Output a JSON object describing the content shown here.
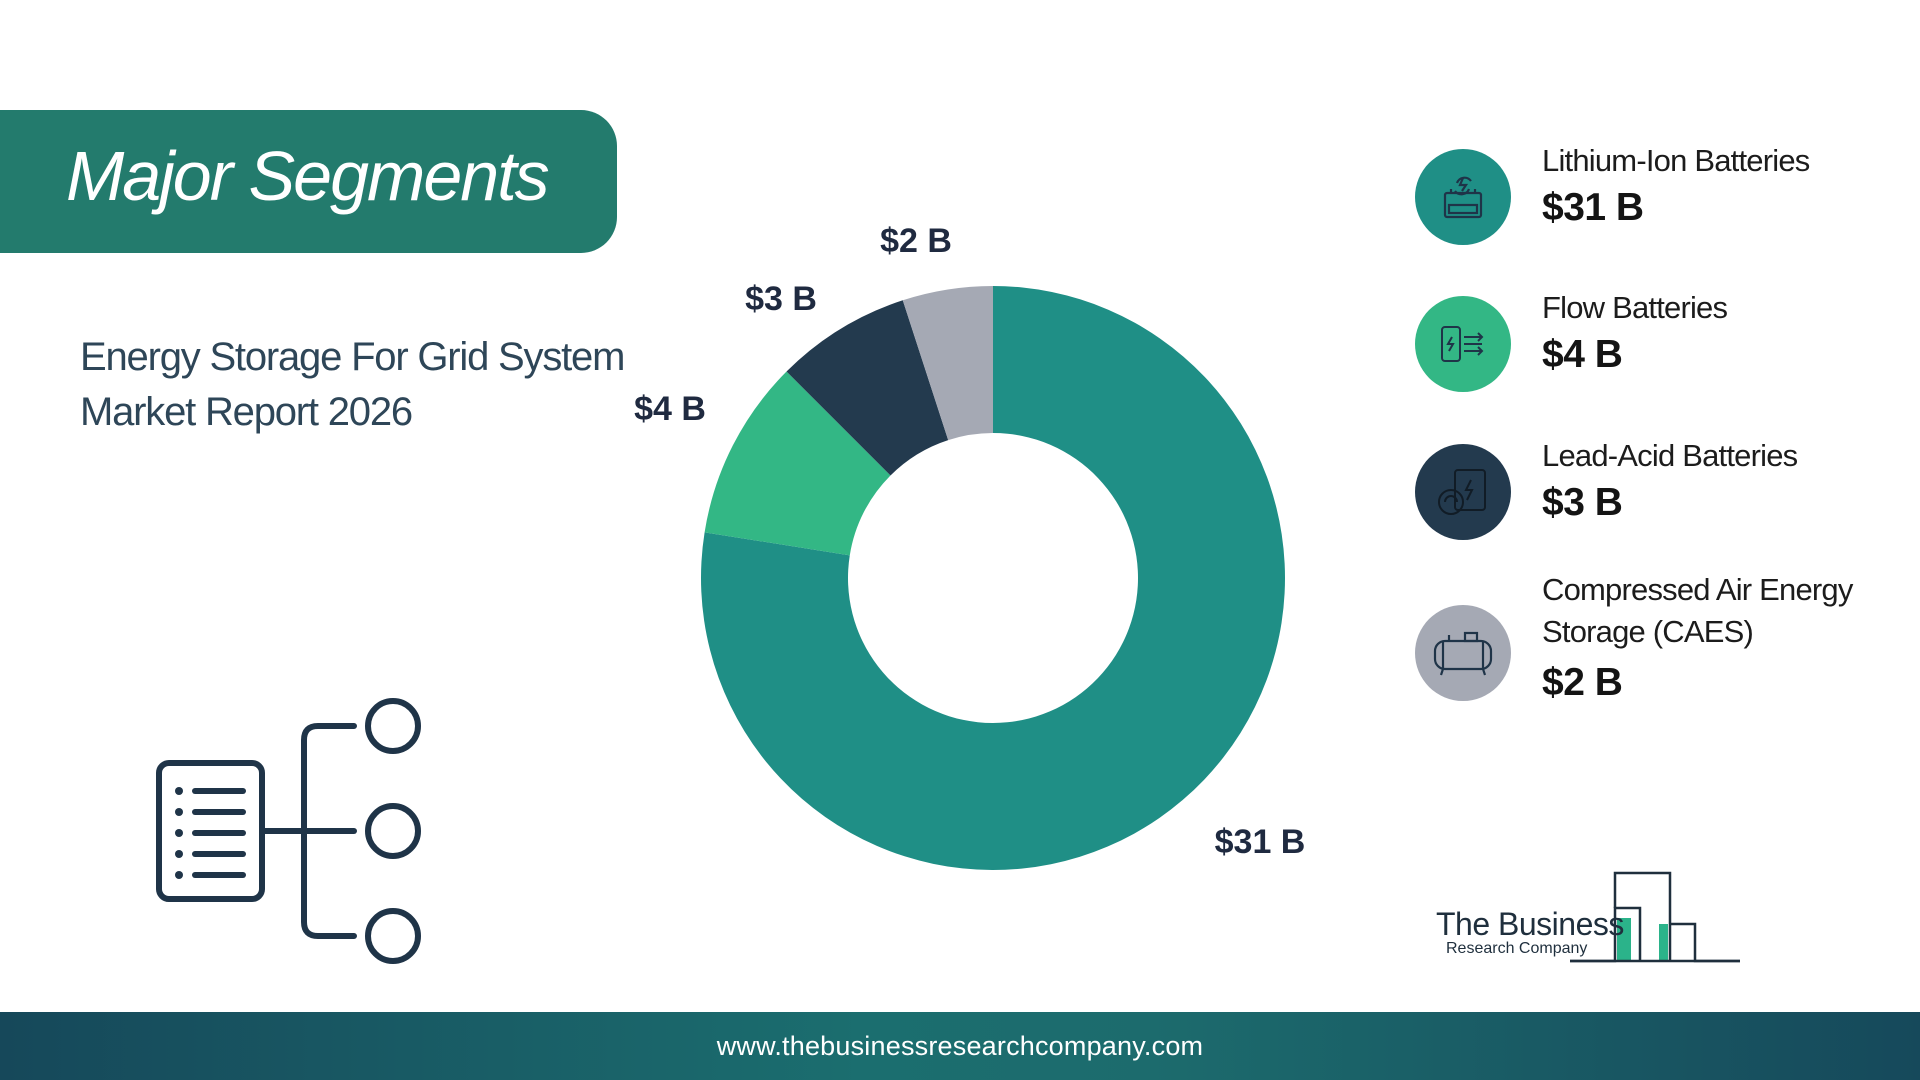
{
  "header": {
    "title": "Major Segments"
  },
  "subtitle": {
    "line1": "Energy Storage For Grid System",
    "line2": "Market Report 2026"
  },
  "colors": {
    "banner": "#237b6d",
    "lithium_ion": "#1f8f86",
    "flow": "#33b785",
    "lead_acid": "#233a4e",
    "caes": "#a5a9b4",
    "icon_dark": "#1f3448"
  },
  "chart_data": {
    "type": "pie",
    "title": "",
    "categories": [
      "Lithium-Ion Batteries",
      "Flow Batteries",
      "Lead-Acid Batteries",
      "Compressed Air Energy Storage (CAES)"
    ],
    "values": [
      31,
      4,
      3,
      2
    ],
    "unit": "$ B",
    "data_labels": [
      "$31 B",
      "$4 B",
      "$3 B",
      "$2 B"
    ],
    "colors": [
      "#1f8f86",
      "#33b785",
      "#233a4e",
      "#a5a9b4"
    ],
    "donut": true,
    "legend": "right"
  },
  "legend": {
    "items": [
      {
        "label": "Lithium-Ion Batteries",
        "value": "$31 B",
        "icon": "li-ion-battery-icon"
      },
      {
        "label": "Flow Batteries",
        "value": "$4 B",
        "icon": "flow-battery-icon"
      },
      {
        "label": "Lead-Acid Batteries",
        "value": "$3 B",
        "icon": "lead-acid-battery-icon"
      },
      {
        "label_line1": "Compressed Air Energy",
        "label_line2": "Storage (CAES)",
        "value": "$2 B",
        "icon": "compressed-air-tank-icon"
      }
    ]
  },
  "logo": {
    "line1": "The Business",
    "line2": "Research Company"
  },
  "footer": {
    "url": "www.thebusinessresearchcompany.com"
  }
}
